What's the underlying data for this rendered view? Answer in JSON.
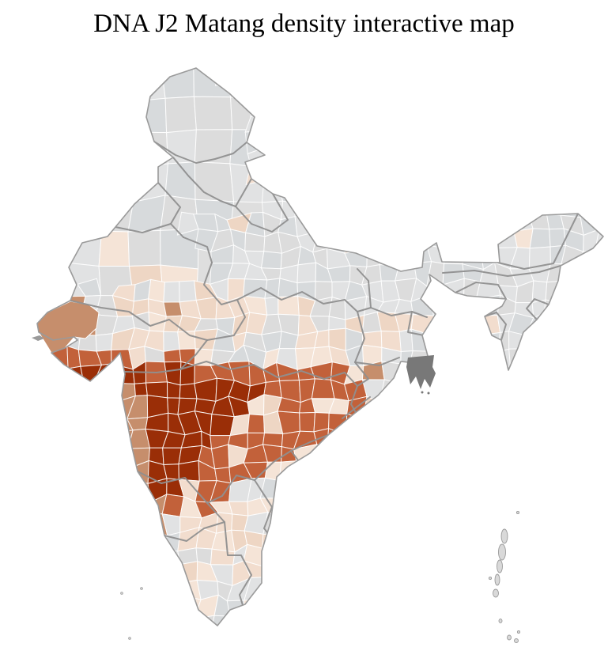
{
  "title": "DNA J2 Matang density interactive map",
  "map": {
    "name": "india-district-choropleth",
    "background": "#ffffff",
    "palette": {
      "no_data": "#dedede",
      "no_data_variants": [
        "#dcdcdc",
        "#e1e2e3",
        "#d7dadc"
      ],
      "low": "#f1dccc",
      "low_variants": [
        "#f2ddce",
        "#eed6c4",
        "#f5e4d7"
      ],
      "medium_low": "#c68e6c",
      "medium_high": "#c2613a",
      "high": "#9a2e07",
      "river_delta": "#787878",
      "district_border": "#ffffff",
      "state_border": "#8f8f8f",
      "coast_border": "#9a9a9a"
    },
    "density_regions": [
      {
        "name": "konkan-coast-strip",
        "level": "medium_low",
        "coverage": 0.9
      },
      {
        "name": "maharashtra-core",
        "level": "high",
        "coverage": 1
      },
      {
        "name": "maharashtra-ring-vidarbha-marathwada",
        "level": "medium_high",
        "coverage": 0.82
      },
      {
        "name": "kutch",
        "level": "medium_low",
        "coverage": 1
      },
      {
        "name": "gujarat",
        "level": "low",
        "coverage": 0.62
      },
      {
        "name": "southwest-madhya-pradesh",
        "level": "low",
        "coverage": 0.55
      },
      {
        "name": "thar-west-rajasthan",
        "level": "low",
        "coverage": 0.5
      },
      {
        "name": "south-bengal",
        "level": "low",
        "coverage": 0.5
      },
      {
        "name": "chhattisgarh-odisha",
        "level": "low",
        "coverage": 0.3
      },
      {
        "name": "andhra-coast",
        "level": "low",
        "coverage": 0.45
      },
      {
        "name": "south-peninsula",
        "level": "low",
        "coverage": 0.5
      },
      {
        "name": "himalaya-jammu-kashmir",
        "level": "no_data",
        "coverage": 1
      },
      {
        "name": "northeast",
        "level": "no_data",
        "coverage": 0.93
      },
      {
        "name": "gangetic-plain",
        "level": "low",
        "coverage": 0.22
      },
      {
        "name": "rest-of-india",
        "level": "no_data",
        "coverage": 0.92
      }
    ],
    "islands": [
      "andaman-nicobar",
      "lakshadweep"
    ],
    "features": [
      "sundarbans-delta"
    ]
  }
}
